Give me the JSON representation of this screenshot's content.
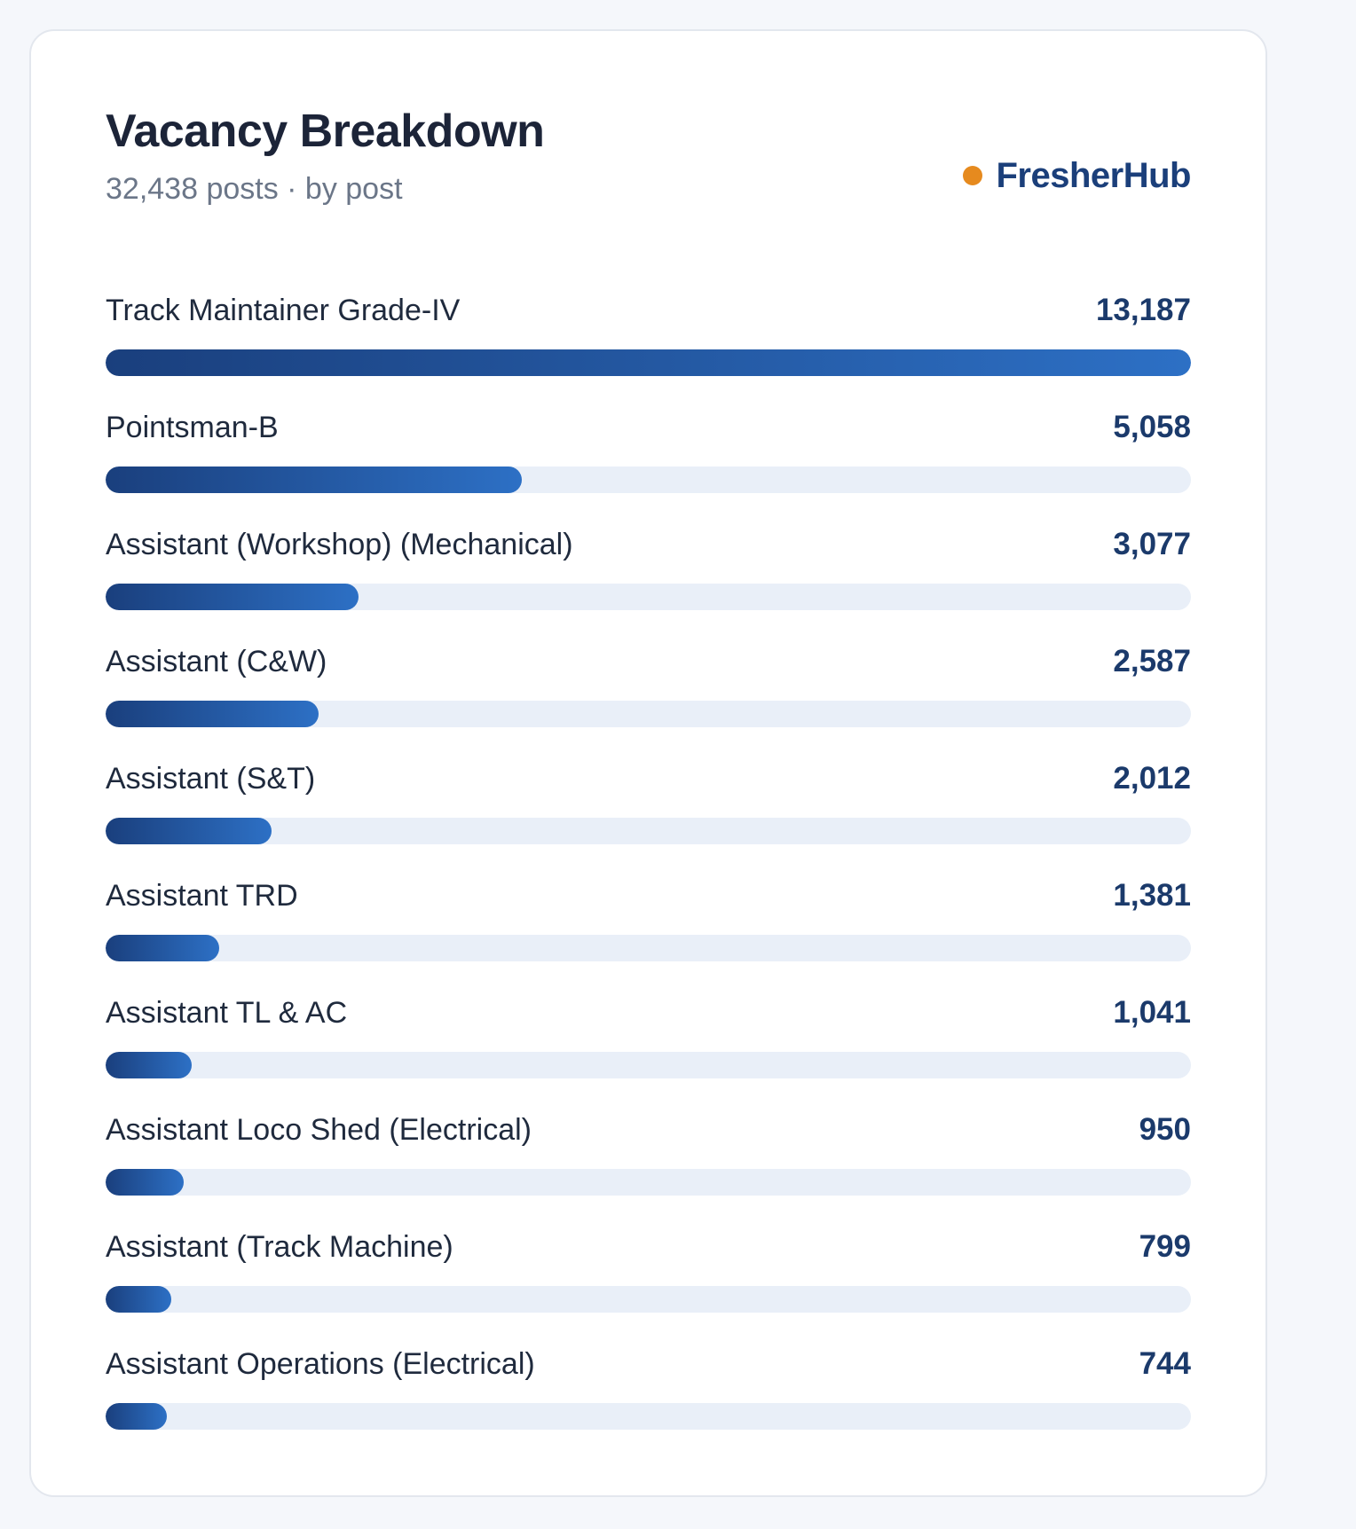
{
  "header": {
    "title": "Vacancy Breakdown",
    "subtitle": "32,438 posts · by post",
    "brand": "FresherHub"
  },
  "colors": {
    "brand_dot": "#e68a1e",
    "bar_start": "#1a3f7d",
    "bar_end": "#2d70c5",
    "track": "#e9eff8"
  },
  "chart_data": {
    "type": "bar",
    "orientation": "horizontal",
    "title": "Vacancy Breakdown",
    "subtitle": "32,438 posts · by post",
    "categories": [
      "Track Maintainer Grade-IV",
      "Pointsman-B",
      "Assistant (Workshop) (Mechanical)",
      "Assistant (C&W)",
      "Assistant (S&T)",
      "Assistant TRD",
      "Assistant TL & AC",
      "Assistant Loco Shed (Electrical)",
      "Assistant (Track Machine)",
      "Assistant Operations (Electrical)"
    ],
    "values": [
      13187,
      5058,
      3077,
      2587,
      2012,
      1381,
      1041,
      950,
      799,
      744
    ],
    "value_labels": [
      "13,187",
      "5,058",
      "3,077",
      "2,587",
      "2,012",
      "1,381",
      "1,041",
      "950",
      "799",
      "744"
    ],
    "xlim": [
      0,
      13187
    ],
    "grid": false
  }
}
